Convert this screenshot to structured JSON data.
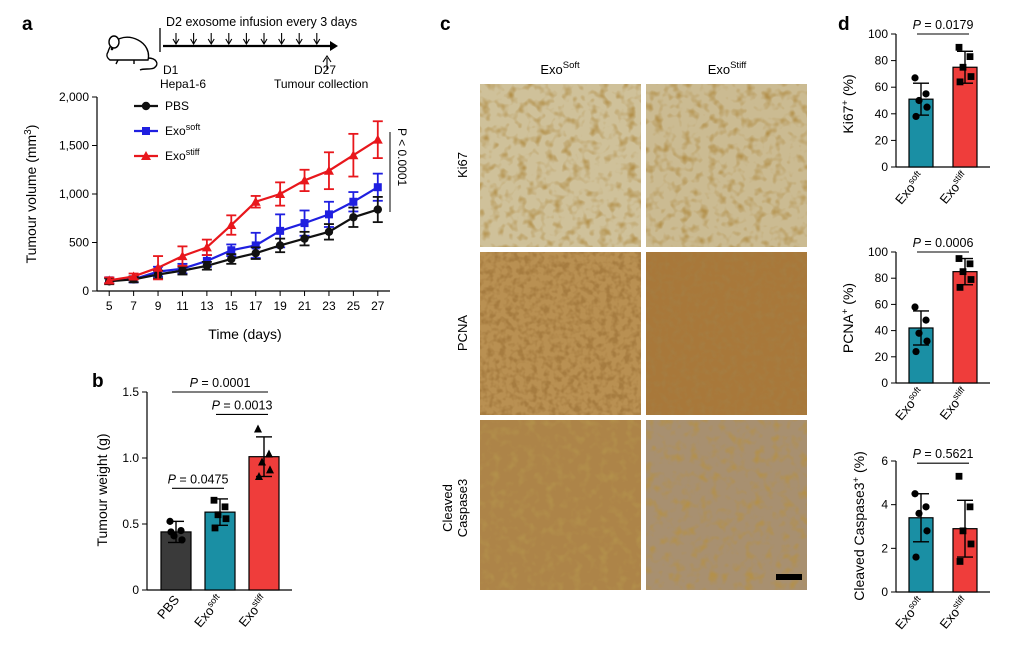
{
  "colors": {
    "pbs": "#111111",
    "soft": "#1f1fe0",
    "stiff": "#e8171c",
    "bar_soft": "#1a8fa4",
    "bar_stiff": "#ef3d3b",
    "bar_pbs": "#3a3a3a"
  },
  "panel_labels": {
    "a": "a",
    "b": "b",
    "c": "c",
    "d": "d"
  },
  "schematic": {
    "infusion": "D2 exosome infusion every 3 days",
    "start_day": "D1",
    "start_label": "Hepa1-6",
    "end_day": "D27",
    "end_label": "Tumour collection",
    "mouse_icon": "mouse-icon"
  },
  "stain_panel": {
    "col_soft_base": "Exo",
    "col_soft_sup": "Soft",
    "col_stiff_base": "Exo",
    "col_stiff_sup": "Stiff",
    "rows": [
      "Ki67",
      "PCNA",
      "Cleaved",
      "Caspase3"
    ]
  },
  "chart_data": [
    {
      "id": "a",
      "type": "line",
      "title": "",
      "xlabel": "Time (days)",
      "ylabel_base": "Tumour volume (mm",
      "ylabel_sup": "3",
      "ylabel_end": ")",
      "x": [
        5,
        7,
        9,
        11,
        13,
        15,
        17,
        19,
        21,
        23,
        25,
        27
      ],
      "xlim": [
        4,
        28
      ],
      "ylim": [
        0,
        2000
      ],
      "yticks": [
        "0",
        "500",
        "1,000",
        "1,500",
        "2,000"
      ],
      "ytick_values": [
        0,
        500,
        1000,
        1500,
        2000
      ],
      "stat_label": "P < 0.0001",
      "series": [
        {
          "name": "PBS",
          "name_sup": "",
          "color": "#111111",
          "marker": "circle",
          "values": [
            100,
            120,
            170,
            210,
            260,
            330,
            390,
            470,
            540,
            610,
            760,
            840
          ],
          "errors": [
            30,
            30,
            40,
            40,
            40,
            50,
            60,
            70,
            70,
            80,
            100,
            130
          ]
        },
        {
          "name": "Exo",
          "name_sup": "soft",
          "color": "#1f1fe0",
          "marker": "square",
          "values": [
            110,
            120,
            200,
            230,
            310,
            420,
            470,
            620,
            700,
            790,
            920,
            1070
          ],
          "errors": [
            30,
            30,
            50,
            50,
            60,
            60,
            130,
            170,
            130,
            130,
            100,
            140
          ]
        },
        {
          "name": "Exo",
          "name_sup": "stiff",
          "color": "#e8171c",
          "marker": "triangle",
          "values": [
            110,
            150,
            240,
            360,
            450,
            680,
            920,
            1000,
            1140,
            1240,
            1400,
            1560
          ],
          "errors": [
            30,
            30,
            120,
            100,
            80,
            100,
            60,
            120,
            110,
            190,
            220,
            190
          ]
        }
      ]
    },
    {
      "id": "b",
      "type": "bar",
      "ylabel": "Tumour weight (g)",
      "ylim": [
        0,
        1.5
      ],
      "yticks": [
        "0",
        "0.5",
        "1.0",
        "1.5"
      ],
      "ytick_values": [
        0,
        0.5,
        1.0,
        1.5
      ],
      "categories": [
        {
          "base": "PBS",
          "sup": ""
        },
        {
          "base": "Exo",
          "sup": "soft"
        },
        {
          "base": "Exo",
          "sup": "stiff"
        }
      ],
      "values": [
        0.44,
        0.59,
        1.01
      ],
      "errors": [
        0.08,
        0.1,
        0.15
      ],
      "points": [
        [
          0.52,
          0.45,
          0.41,
          0.38,
          0.44
        ],
        [
          0.68,
          0.63,
          0.57,
          0.54,
          0.47
        ],
        [
          1.22,
          1.03,
          0.97,
          0.91,
          0.86
        ]
      ],
      "colors": [
        "#3a3a3a",
        "#1a8fa4",
        "#ef3d3b"
      ],
      "comparisons": [
        {
          "label": "P = 0.0475",
          "from": 0,
          "to": 1,
          "level": 0.77
        },
        {
          "label": "P = 0.0013",
          "from": 1,
          "to": 2,
          "level": 1.33
        },
        {
          "label": "P = 0.0001",
          "from": 0,
          "to": 2,
          "level": 1.5
        }
      ]
    },
    {
      "id": "d1",
      "type": "bar",
      "ylabel_base": "Ki67",
      "ylabel_sup": "+",
      "ylabel_end": " (%)",
      "ylim": [
        0,
        100
      ],
      "yticks": [
        "0",
        "20",
        "40",
        "60",
        "80",
        "100"
      ],
      "ytick_values": [
        0,
        20,
        40,
        60,
        80,
        100
      ],
      "categories": [
        {
          "base": "Exo",
          "sup": "soft"
        },
        {
          "base": "Exo",
          "sup": "stiff"
        }
      ],
      "values": [
        51,
        75
      ],
      "errors": [
        12,
        12
      ],
      "points": [
        [
          67,
          55,
          50,
          45,
          38
        ],
        [
          90,
          83,
          75,
          68,
          64
        ]
      ],
      "colors": [
        "#1a8fa4",
        "#ef3d3b"
      ],
      "comparison": {
        "label": "P = 0.0179",
        "level": 100
      }
    },
    {
      "id": "d2",
      "type": "bar",
      "ylabel_base": "PCNA",
      "ylabel_sup": "+",
      "ylabel_end": " (%)",
      "ylim": [
        0,
        100
      ],
      "yticks": [
        "0",
        "20",
        "40",
        "60",
        "80",
        "100"
      ],
      "ytick_values": [
        0,
        20,
        40,
        60,
        80,
        100
      ],
      "categories": [
        {
          "base": "Exo",
          "sup": "soft"
        },
        {
          "base": "Exo",
          "sup": "stiff"
        }
      ],
      "values": [
        42,
        85
      ],
      "errors": [
        13,
        10
      ],
      "points": [
        [
          58,
          48,
          38,
          32,
          24
        ],
        [
          95,
          91,
          85,
          79,
          73
        ]
      ],
      "colors": [
        "#1a8fa4",
        "#ef3d3b"
      ],
      "comparison": {
        "label": "P = 0.0006",
        "level": 100
      }
    },
    {
      "id": "d3",
      "type": "bar",
      "ylabel_base": "Cleaved Caspase3",
      "ylabel_sup": "+",
      "ylabel_end": " (%)",
      "ylim": [
        0,
        6
      ],
      "yticks": [
        "0",
        "2",
        "4",
        "6"
      ],
      "ytick_values": [
        0,
        2,
        4,
        6
      ],
      "categories": [
        {
          "base": "Exo",
          "sup": "soft"
        },
        {
          "base": "Exo",
          "sup": "stiff"
        }
      ],
      "values": [
        3.4,
        2.9
      ],
      "errors": [
        1.1,
        1.3
      ],
      "points": [
        [
          4.5,
          3.9,
          3.6,
          2.8,
          1.6
        ],
        [
          5.3,
          3.9,
          2.8,
          2.2,
          1.4
        ]
      ],
      "colors": [
        "#1a8fa4",
        "#ef3d3b"
      ],
      "comparison": {
        "label": "P = 0.5621",
        "level": 5.9
      }
    }
  ]
}
